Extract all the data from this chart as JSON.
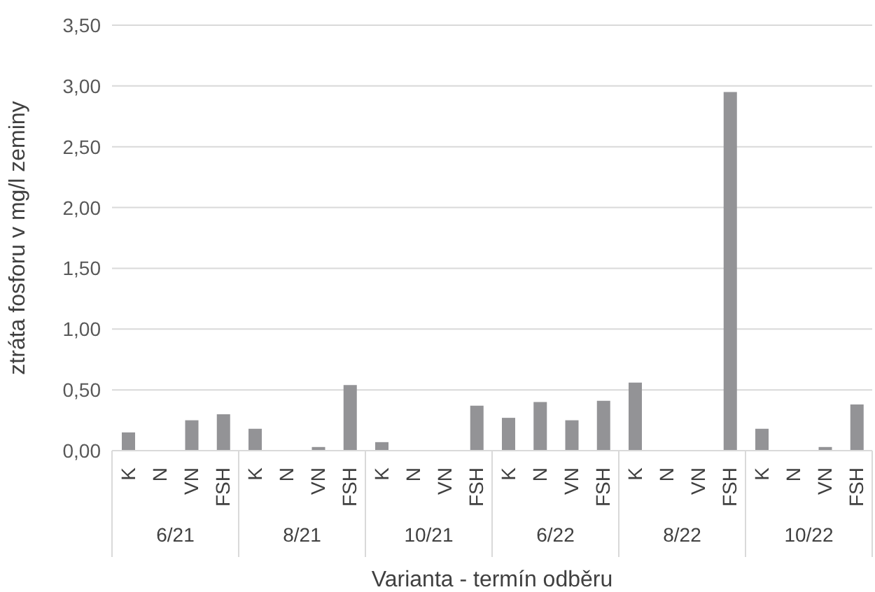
{
  "chart_data": {
    "type": "bar",
    "xlabel": "Varianta - termín odběru",
    "ylabel": "ztráta fosforu v mg/l zeminy",
    "categories": [
      "K",
      "N",
      "VN",
      "FSH",
      "K",
      "N",
      "VN",
      "FSH",
      "K",
      "N",
      "VN",
      "FSH",
      "K",
      "N",
      "VN",
      "FSH",
      "K",
      "N",
      "VN",
      "FSH",
      "K",
      "N",
      "VN",
      "FSH"
    ],
    "annotations": [
      "6/21",
      "8/21",
      "10/21",
      "6/22",
      "8/22",
      "10/22"
    ],
    "values": [
      0.15,
      0,
      0.25,
      0.3,
      0.18,
      0,
      0.03,
      0.54,
      0.07,
      0,
      0,
      0.37,
      0.27,
      0.4,
      0.25,
      0.41,
      0.56,
      0,
      0,
      2.95,
      0.18,
      0,
      0.03,
      0.38
    ],
    "color": "#939396",
    "ylim": [
      0,
      3.5
    ],
    "yticks": [
      {
        "value": 0,
        "label": "0,00"
      },
      {
        "value": 0.5,
        "label": "0,50"
      },
      {
        "value": 1,
        "label": "1,00"
      },
      {
        "value": 1.5,
        "label": "1,50"
      },
      {
        "value": 2,
        "label": "2,00"
      },
      {
        "value": 2.5,
        "label": "2,50"
      },
      {
        "value": 3,
        "label": "3,00"
      },
      {
        "value": 3.5,
        "label": "3,50"
      }
    ],
    "grid": "y",
    "legend": false
  }
}
